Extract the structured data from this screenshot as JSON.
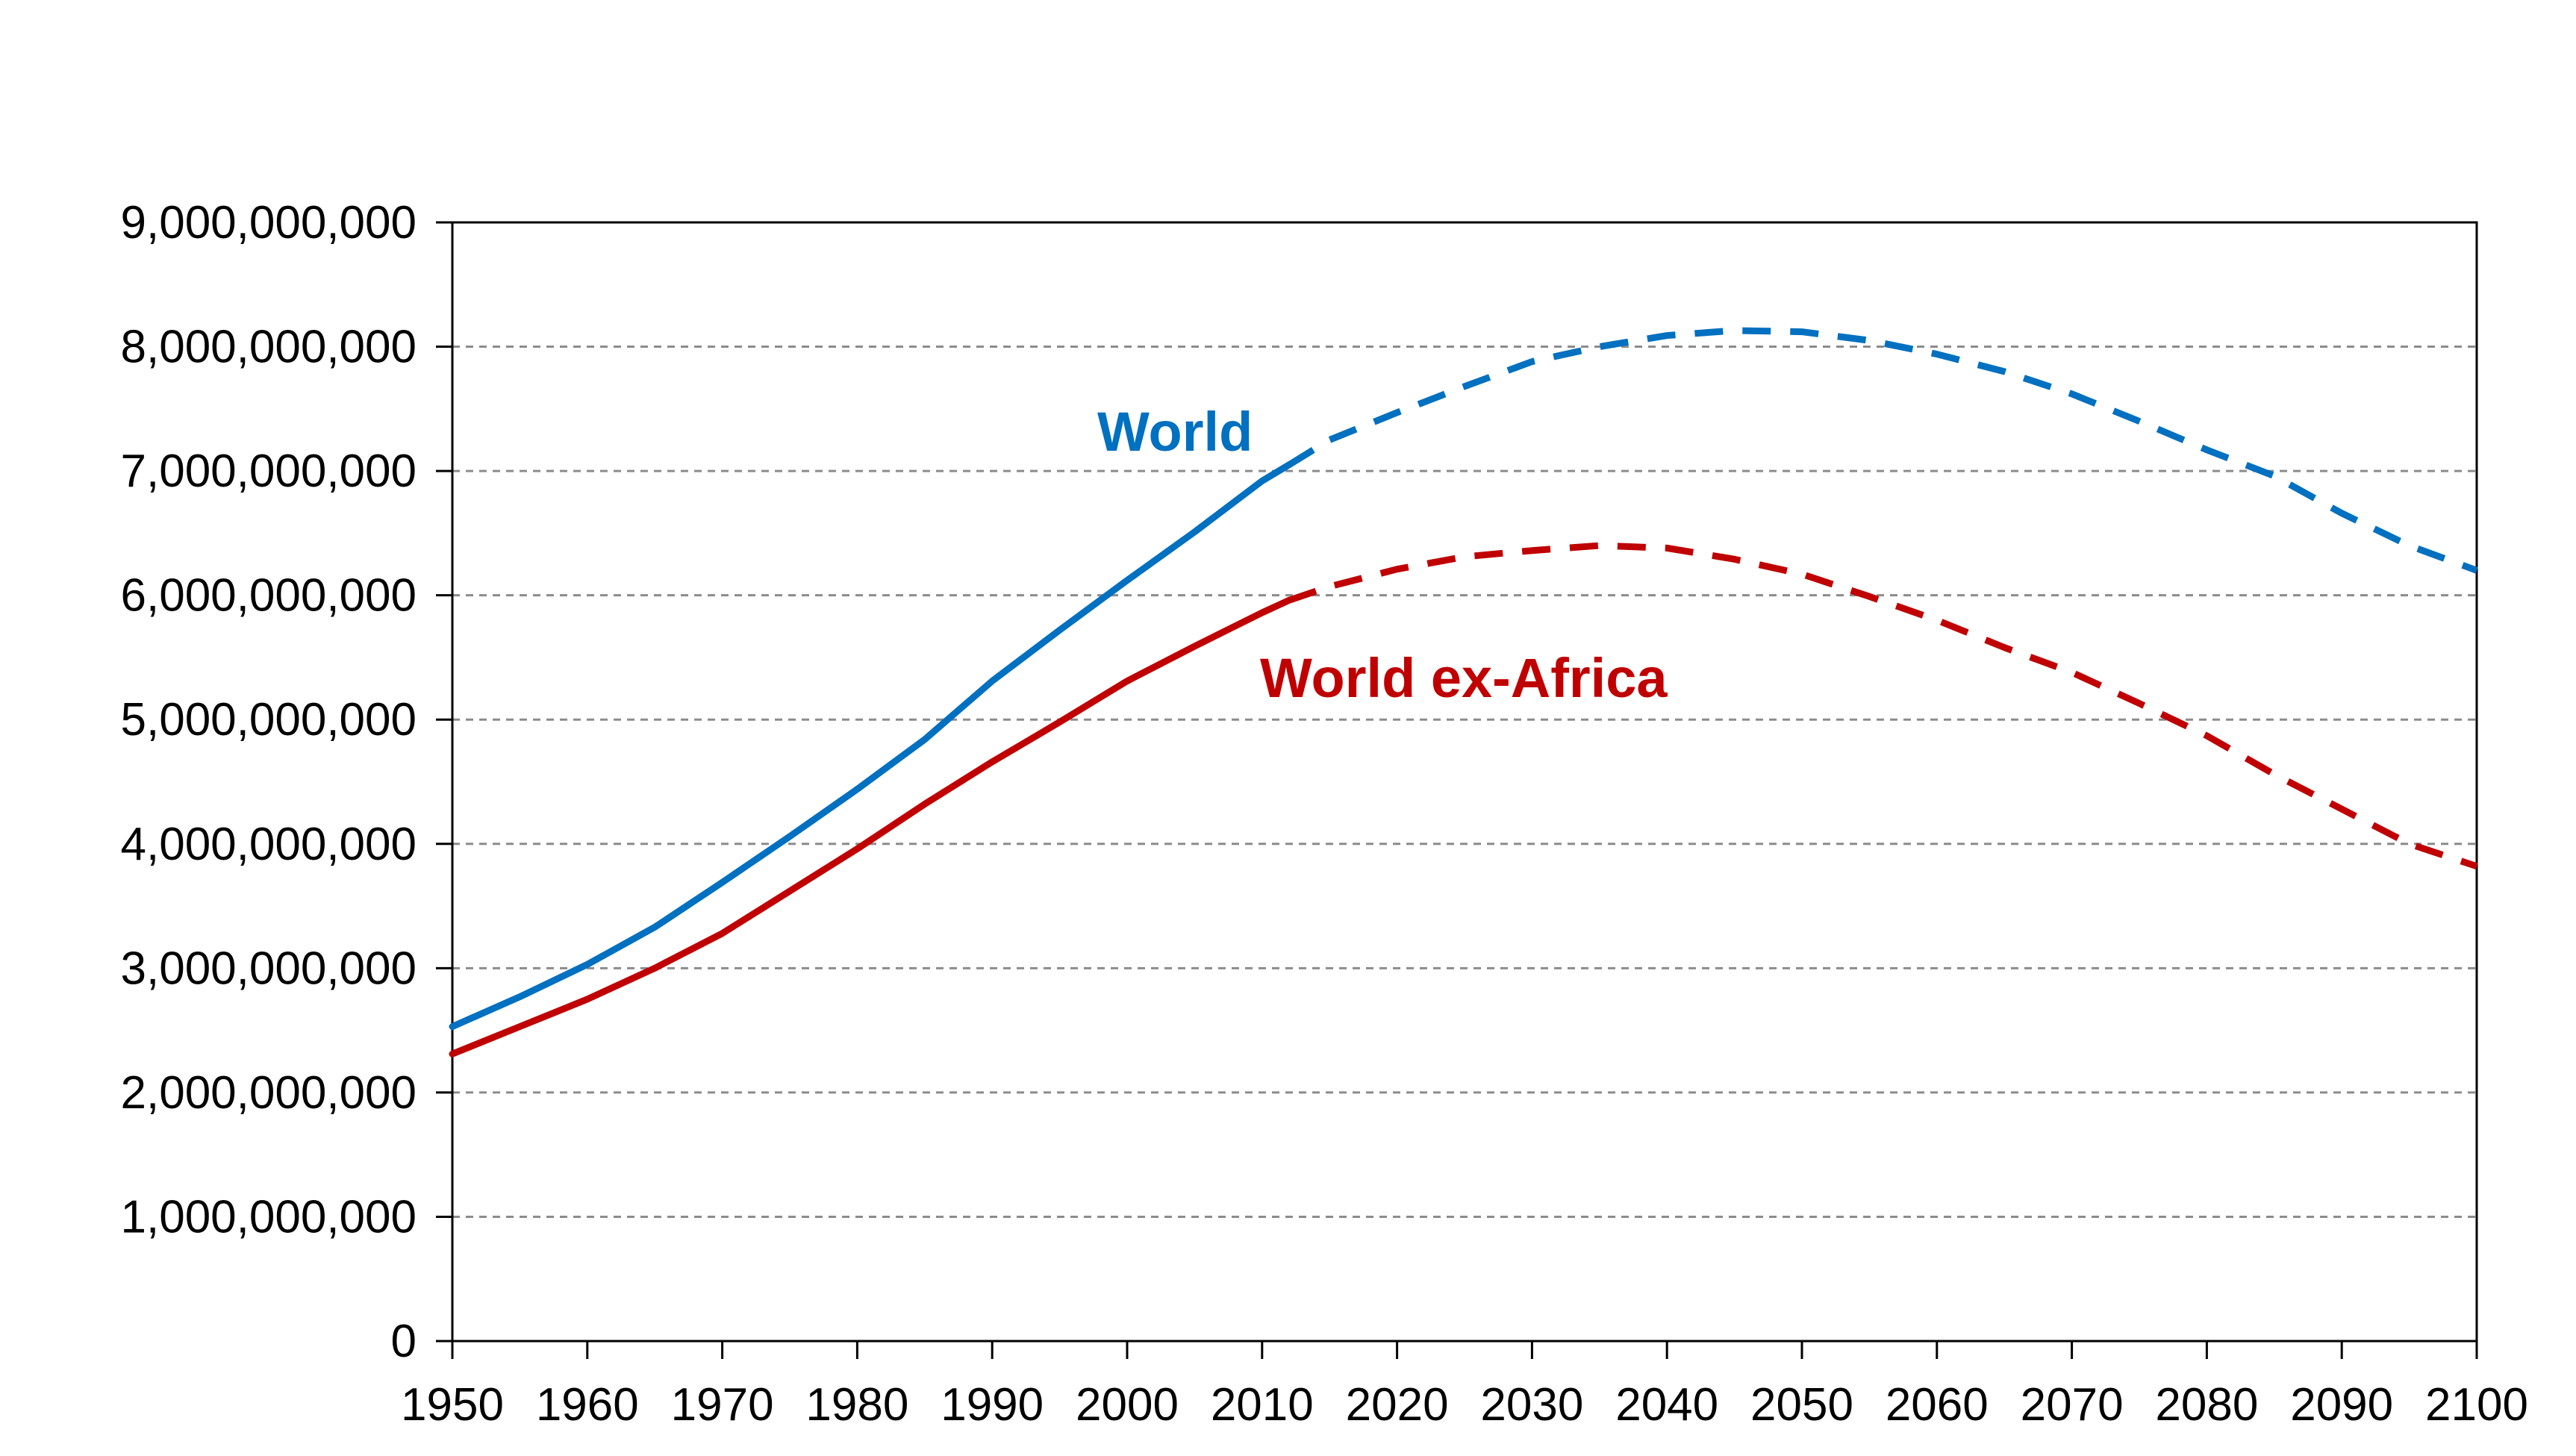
{
  "chart_data": {
    "type": "line",
    "title": "",
    "xlabel": "",
    "ylabel": "",
    "xlim": [
      1950,
      2100
    ],
    "ylim": [
      0,
      9000000000
    ],
    "grid": "horizontal dashed",
    "x_ticks": [
      "1950",
      "1960",
      "1970",
      "1980",
      "1990",
      "2000",
      "2010",
      "2020",
      "2030",
      "2040",
      "2050",
      "2060",
      "2070",
      "2080",
      "2090",
      "2100"
    ],
    "y_ticks": [
      "0",
      "1,000,000,000",
      "2,000,000,000",
      "3,000,000,000",
      "4,000,000,000",
      "5,000,000,000",
      "6,000,000,000",
      "7,000,000,000",
      "8,000,000,000",
      "9,000,000,000"
    ],
    "series": [
      {
        "name": "World",
        "color": "#0070C0",
        "historical": {
          "x": [
            1950,
            1955,
            1960,
            1965,
            1970,
            1975,
            1980,
            1985,
            1990,
            1995,
            2000,
            2005,
            2010,
            2012
          ],
          "values": [
            2530000000,
            2770000000,
            3030000000,
            3330000000,
            3690000000,
            4060000000,
            4440000000,
            4840000000,
            5310000000,
            5720000000,
            6120000000,
            6510000000,
            6920000000,
            7050000000
          ]
        },
        "projected": {
          "x": [
            2012,
            2015,
            2020,
            2025,
            2030,
            2035,
            2040,
            2045,
            2050,
            2055,
            2060,
            2065,
            2070,
            2075,
            2080,
            2085,
            2090,
            2095,
            2100
          ],
          "values": [
            7050000000,
            7250000000,
            7470000000,
            7680000000,
            7880000000,
            8000000000,
            8090000000,
            8130000000,
            8120000000,
            8050000000,
            7940000000,
            7800000000,
            7620000000,
            7400000000,
            7170000000,
            6960000000,
            6660000000,
            6400000000,
            6200000000
          ]
        }
      },
      {
        "name": "World ex-Africa",
        "color": "#C00000",
        "historical": {
          "x": [
            1950,
            1955,
            1960,
            1965,
            1970,
            1975,
            1980,
            1985,
            1990,
            1995,
            2000,
            2005,
            2010,
            2012
          ],
          "values": [
            2310000000,
            2530000000,
            2750000000,
            3000000000,
            3280000000,
            3620000000,
            3960000000,
            4320000000,
            4660000000,
            4980000000,
            5310000000,
            5590000000,
            5860000000,
            5960000000
          ]
        },
        "projected": {
          "x": [
            2012,
            2015,
            2020,
            2025,
            2030,
            2035,
            2040,
            2045,
            2050,
            2055,
            2060,
            2065,
            2070,
            2075,
            2080,
            2085,
            2090,
            2095,
            2100
          ],
          "values": [
            5960000000,
            6070000000,
            6210000000,
            6310000000,
            6360000000,
            6400000000,
            6380000000,
            6290000000,
            6170000000,
            5990000000,
            5800000000,
            5580000000,
            5380000000,
            5130000000,
            4870000000,
            4560000000,
            4280000000,
            4000000000,
            3820000000
          ]
        }
      }
    ]
  }
}
